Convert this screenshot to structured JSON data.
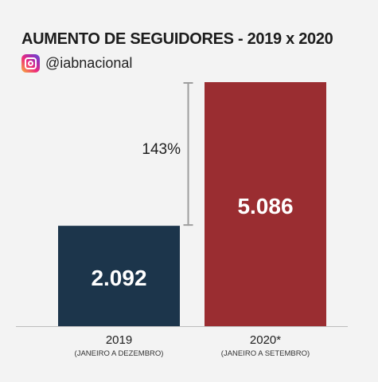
{
  "title": "AUMENTO DE SEGUIDORES - 2019 x 2020",
  "social": {
    "icon": "instagram-icon",
    "handle": "@iabnacional"
  },
  "chart_data": {
    "type": "bar",
    "categories": [
      "2019",
      "2020*"
    ],
    "category_notes": [
      "(JANEIRO A DEZEMBRO)",
      "(JANEIRO A SETEMBRO)"
    ],
    "values": [
      2092,
      5086
    ],
    "value_labels": [
      "2.092",
      "5.086"
    ],
    "colors": [
      "#1c354b",
      "#9a2d31"
    ],
    "ylim": [
      0,
      5086
    ],
    "grid": false,
    "legend": "none",
    "annotation": {
      "text": "143%",
      "from_category": "2019",
      "to_category": "2020*"
    }
  }
}
